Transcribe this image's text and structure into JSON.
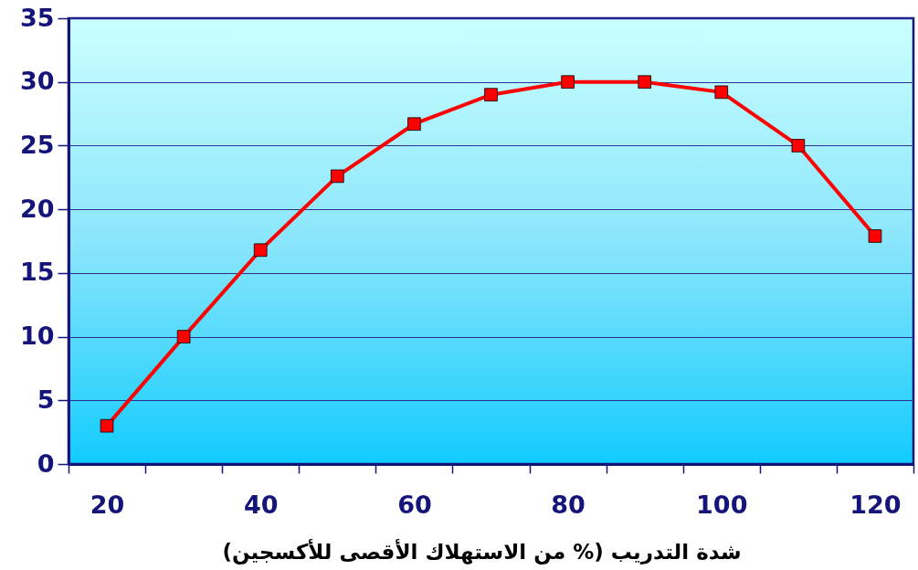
{
  "chart_data": {
    "type": "line",
    "xlabel": "شدة التدريب (% من الاستهلاك الأقصى للأكسجين)",
    "categories": [
      "20",
      null,
      "40",
      null,
      "60",
      null,
      "80",
      null,
      "100",
      null,
      "120"
    ],
    "series": [
      {
        "color": "#ff0000",
        "values": [
          3,
          10,
          16.8,
          22.6,
          26.7,
          29,
          30,
          30,
          29.2,
          25,
          17.9
        ]
      }
    ],
    "ylim": [
      0,
      35
    ],
    "yticks": [
      0,
      5,
      10,
      15,
      20,
      25,
      30,
      35
    ],
    "grid": "y",
    "marker": "square",
    "line_style": "solid"
  }
}
